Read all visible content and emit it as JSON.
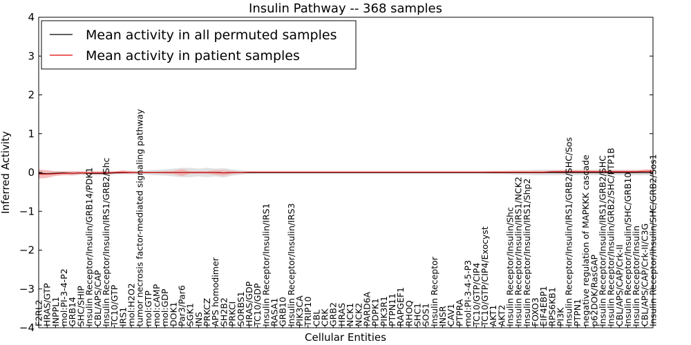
{
  "chart_data": {
    "type": "line",
    "title": "Insulin Pathway -- 368 samples",
    "xlabel": "Cellular Entities",
    "ylabel": "Inferred Activity",
    "ylim": [
      -4,
      4
    ],
    "yticks": [
      -4,
      -3,
      -2,
      -1,
      0,
      1,
      2,
      3,
      4
    ],
    "legend_position": "top-left",
    "categories": [
      "F2RL2",
      "HRAS/GTP",
      "INPPL1",
      "mol:PI-3-4-P2",
      "GRB14",
      "SHC/SHIP",
      "Insulin Receptor/Insulin/GRB14/PDK1",
      "CBL/APS/CAP",
      "Insulin Receptor/Insulin/IRS1/GRB2/Shc",
      "TC10/GTP",
      "IRS1",
      "mol:H2O2",
      "tumor necrosis factor-mediated signaling pathway",
      "mol:GTP",
      "mol:cAMP",
      "mol:GDP",
      "DOK1",
      "Par3/Par6",
      "SGK1",
      "INS",
      "PRKCZ",
      "APS homodimer",
      "SH2B2",
      "PRKCI",
      "SORBS1",
      "HRAS/GDP",
      "TC10/GDP",
      "Insulin Receptor/Insulin/IRS1",
      "RASA1",
      "GRB10",
      "Insulin Receptor/Insulin/IRS3",
      "PIK3CA",
      "TRIP10",
      "CBL",
      "CRK",
      "GRB2",
      "HRAS",
      "NCK1",
      "NCK2",
      "PARD6A",
      "PDPK1",
      "PIK3R1",
      "PTPN11",
      "RAPGEF1",
      "RHOQ",
      "SHC1",
      "SOS1",
      "Insulin Receptor",
      "INSR",
      "CAV1",
      "PTPRA",
      "mol:PI-3-4-5-P3",
      "TC10/GTP/CIP4",
      "TC10/GTP/CIP4/Exocyst",
      "AKT1",
      "AKT2",
      "Insulin Receptor/Insulin/Shc",
      "Insulin Receptor/Insulin/IRS1/NCK2",
      "Insulin Receptor/Insulin/IRS1/Shp2",
      "FOXO3",
      "EIF4EBP1",
      "RPS6KB1",
      "PI3K",
      "Insulin Receptor/Insulin/IRS1/GRB2/SHC/Sos",
      "PTPN1",
      "negative regulation of MAPKKK cascade",
      "p62DOK/RasGAP",
      "Insulin Receptor/Insulin/IRS1/GRB2/SHC",
      "Insulin Receptor/Insulin/GRB2/SHC/PTP1B",
      "CBL/APS/CAP/Crk-II",
      "Insulin Receptor/Insulin/SHC/GRB10",
      "Insulin Receptor/Insulin",
      "CBL/APS/CAP/Crk-II/C3G",
      "Insulin Receptor/Insulin/SHC/GRB2/Sos1"
    ],
    "series": [
      {
        "name": "Mean activity in all permuted samples",
        "color": "#000000",
        "band_color": "#c8c8c8",
        "values": [
          -0.02,
          -0.03,
          -0.02,
          -0.01,
          -0.02,
          -0.01,
          -0.02,
          -0.02,
          -0.02,
          -0.01,
          0.0,
          0.0,
          0.0,
          0.0,
          0.0,
          0.0,
          0.0,
          0.0,
          0.0,
          0.0,
          0.0,
          0.0,
          -0.01,
          0.0,
          0.0,
          0.0,
          0.0,
          0.0,
          0.0,
          0.0,
          0.0,
          0.0,
          0.0,
          0.0,
          0.0,
          0.0,
          0.0,
          0.0,
          0.0,
          0.0,
          0.0,
          0.0,
          0.0,
          0.0,
          0.0,
          0.0,
          0.0,
          0.0,
          0.0,
          0.0,
          0.0,
          0.0,
          0.0,
          0.0,
          0.0,
          0.0,
          0.0,
          0.0,
          0.0,
          0.0,
          0.0,
          0.0,
          0.0,
          0.0,
          0.0,
          0.0,
          0.0,
          0.0,
          0.0,
          0.0,
          0.0,
          0.0,
          0.0,
          0.0
        ],
        "spread": [
          0.08,
          0.07,
          0.06,
          0.05,
          0.06,
          0.05,
          0.05,
          0.05,
          0.05,
          0.04,
          0.04,
          0.05,
          0.04,
          0.06,
          0.07,
          0.08,
          0.1,
          0.12,
          0.12,
          0.1,
          0.12,
          0.1,
          0.12,
          0.08,
          0.06,
          0.04,
          0.03,
          0.03,
          0.03,
          0.03,
          0.03,
          0.03,
          0.03,
          0.03,
          0.03,
          0.03,
          0.03,
          0.03,
          0.03,
          0.03,
          0.03,
          0.03,
          0.03,
          0.03,
          0.03,
          0.03,
          0.03,
          0.03,
          0.03,
          0.03,
          0.03,
          0.03,
          0.03,
          0.03,
          0.04,
          0.04,
          0.05,
          0.06,
          0.06,
          0.07,
          0.07,
          0.07,
          0.07,
          0.07,
          0.07,
          0.07,
          0.07,
          0.07,
          0.07,
          0.07,
          0.07,
          0.07,
          0.07,
          0.07
        ]
      },
      {
        "name": "Mean activity in patient samples",
        "color": "#e00000",
        "band_color": "#f4a0a0",
        "values": [
          -0.04,
          -0.04,
          -0.03,
          -0.02,
          -0.02,
          -0.01,
          -0.01,
          -0.01,
          -0.01,
          0.0,
          0.01,
          0.0,
          0.0,
          0.0,
          0.0,
          0.0,
          0.0,
          0.0,
          0.0,
          0.0,
          0.0,
          0.0,
          -0.01,
          0.0,
          0.0,
          0.01,
          0.01,
          0.01,
          0.01,
          0.01,
          0.01,
          0.01,
          0.01,
          0.01,
          0.01,
          0.01,
          0.01,
          0.01,
          0.01,
          0.01,
          0.01,
          0.01,
          0.01,
          0.01,
          0.01,
          0.01,
          0.01,
          0.01,
          0.01,
          0.01,
          0.01,
          0.01,
          0.01,
          0.01,
          0.01,
          0.01,
          0.01,
          0.01,
          0.01,
          0.01,
          0.01,
          0.02,
          0.02,
          0.02,
          0.02,
          0.02,
          0.02,
          0.02,
          0.02,
          0.02,
          0.02,
          0.02,
          0.03,
          0.03
        ],
        "spread": [
          0.12,
          0.1,
          0.06,
          0.05,
          0.05,
          0.04,
          0.04,
          0.04,
          0.04,
          0.03,
          0.05,
          0.03,
          0.02,
          0.02,
          0.02,
          0.03,
          0.04,
          0.09,
          0.03,
          0.03,
          0.03,
          0.06,
          0.07,
          0.04,
          0.02,
          0.02,
          0.02,
          0.02,
          0.02,
          0.02,
          0.02,
          0.02,
          0.02,
          0.02,
          0.02,
          0.02,
          0.02,
          0.02,
          0.02,
          0.02,
          0.02,
          0.02,
          0.02,
          0.02,
          0.02,
          0.02,
          0.02,
          0.02,
          0.02,
          0.02,
          0.02,
          0.02,
          0.02,
          0.02,
          0.03,
          0.03,
          0.03,
          0.03,
          0.03,
          0.03,
          0.03,
          0.03,
          0.04,
          0.04,
          0.04,
          0.04,
          0.04,
          0.04,
          0.04,
          0.04,
          0.04,
          0.04,
          0.05,
          0.05
        ]
      }
    ]
  }
}
